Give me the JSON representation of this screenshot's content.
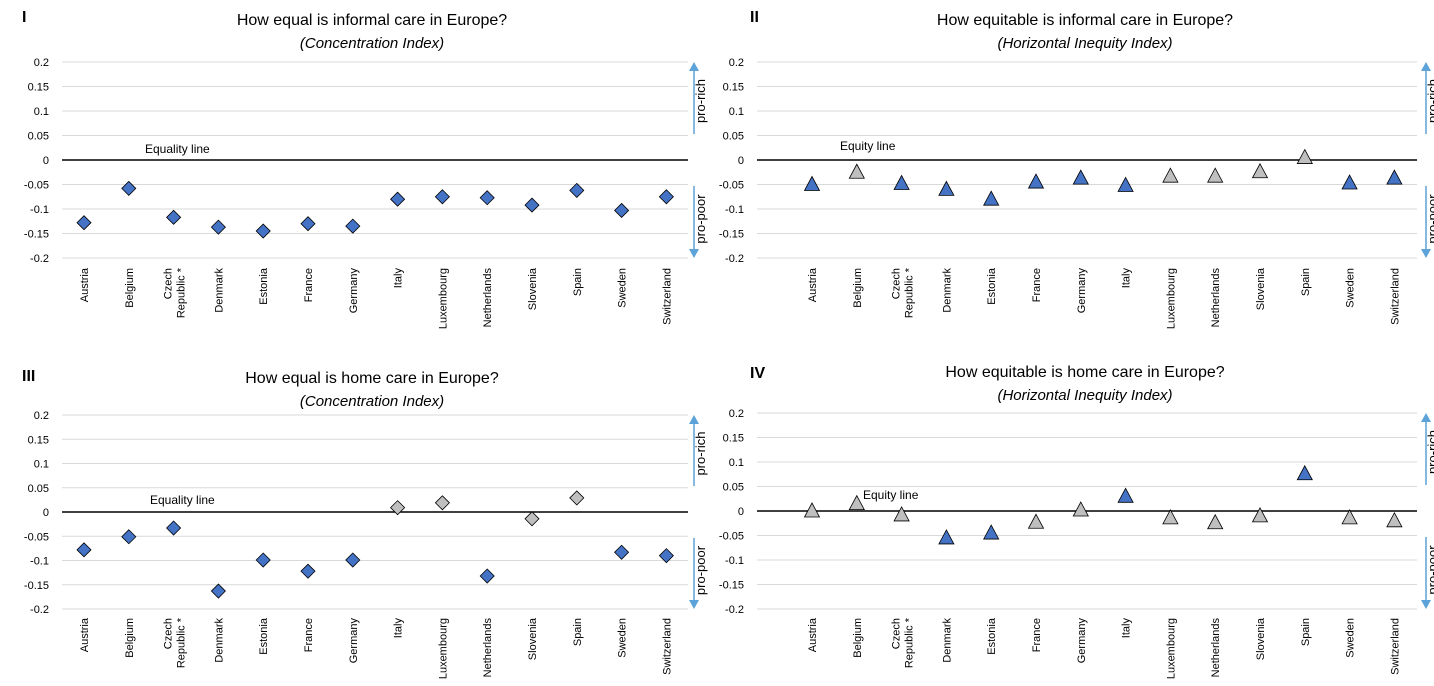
{
  "colors": {
    "significant": "#4472C4",
    "not_significant": "#BFBFBF",
    "arrow": "#5BA3D9",
    "grid": "#D9D9D9"
  },
  "chart_data": [
    {
      "panel": "I",
      "type": "scatter",
      "marker": "diamond",
      "title": "How equal is informal care in Europe?",
      "subtitle": "(Concentration Index)",
      "reference_label": "Equality line",
      "upper_label": "pro-rich",
      "lower_label": "pro-poor",
      "ylim": [
        -0.2,
        0.2
      ],
      "yticks": [
        "0.2",
        "0.15",
        "0.1",
        "0.05",
        "0",
        "-0.05",
        "-0.1",
        "-0.15",
        "-0.2"
      ],
      "categories": [
        "Austria",
        "Belgium",
        "Czech Republic *",
        "Denmark",
        "Estonia",
        "France",
        "Germany",
        "Italy",
        "Luxembourg",
        "Netherlands",
        "Slovenia",
        "Spain",
        "Sweden",
        "Switzerland"
      ],
      "values": [
        -0.128,
        -0.058,
        -0.117,
        -0.137,
        -0.145,
        -0.13,
        -0.135,
        -0.08,
        -0.075,
        -0.077,
        -0.092,
        -0.062,
        -0.103,
        -0.075
      ],
      "significant": [
        true,
        true,
        true,
        true,
        true,
        true,
        true,
        true,
        true,
        true,
        true,
        true,
        true,
        true
      ]
    },
    {
      "panel": "II",
      "type": "scatter",
      "marker": "triangle",
      "title": "How equitable is informal care in Europe?",
      "subtitle": "(Horizontal Inequity Index)",
      "reference_label": "Equity line",
      "upper_label": "pro-rich",
      "lower_label": "pro-poor",
      "ylim": [
        -0.2,
        0.2
      ],
      "yticks": [
        "0.2",
        "0.15",
        "0.1",
        "0.05",
        "0",
        "-0.05",
        "-0.1",
        "-0.15",
        "-0.2"
      ],
      "categories": [
        "Austria",
        "Belgium",
        "Czech Republic *",
        "Denmark",
        "Estonia",
        "France",
        "Germany",
        "Italy",
        "Luxembourg",
        "Netherlands",
        "Slovenia",
        "Spain",
        "Sweden",
        "Switzerland"
      ],
      "values": [
        -0.05,
        -0.025,
        -0.048,
        -0.06,
        -0.08,
        -0.045,
        -0.037,
        -0.052,
        -0.033,
        -0.033,
        -0.024,
        0.005,
        -0.047,
        -0.037
      ],
      "significant": [
        true,
        false,
        true,
        true,
        true,
        true,
        true,
        true,
        false,
        false,
        false,
        false,
        true,
        true
      ]
    },
    {
      "panel": "III",
      "type": "scatter",
      "marker": "diamond",
      "title": "How equal is home care in Europe?",
      "subtitle": "(Concentration Index)",
      "reference_label": "Equality line",
      "upper_label": "pro-rich",
      "lower_label": "pro-poor",
      "ylim": [
        -0.2,
        0.2
      ],
      "yticks": [
        "0.2",
        "0.15",
        "0.1",
        "0.05",
        "0",
        "-0.05",
        "-0.1",
        "-0.15",
        "-0.2"
      ],
      "categories": [
        "Austria",
        "Belgium",
        "Czech Republic *",
        "Denmark",
        "Estonia",
        "France",
        "Germany",
        "Italy",
        "Luxembourg",
        "Netherlands",
        "Slovenia",
        "Spain",
        "Sweden",
        "Switzerland"
      ],
      "values": [
        -0.078,
        -0.051,
        -0.033,
        -0.163,
        -0.099,
        -0.122,
        -0.099,
        0.009,
        0.019,
        -0.132,
        -0.014,
        0.029,
        -0.083,
        -0.09
      ],
      "significant": [
        true,
        true,
        true,
        true,
        true,
        true,
        true,
        false,
        false,
        true,
        false,
        false,
        true,
        true
      ]
    },
    {
      "panel": "IV",
      "type": "scatter",
      "marker": "triangle",
      "title": "How equitable is home care in Europe?",
      "subtitle": "(Horizontal Inequity Index)",
      "reference_label": "Equity line",
      "upper_label": "pro-rich",
      "lower_label": "pro-poor",
      "ylim": [
        -0.2,
        0.2
      ],
      "yticks": [
        "0.2",
        "0.15",
        "0.1",
        "0.05",
        "0",
        "-0.05",
        "-0.1",
        "-0.15",
        "-0.2"
      ],
      "categories": [
        "Austria",
        "Belgium",
        "Czech Republic *",
        "Denmark",
        "Estonia",
        "France",
        "Germany",
        "Italy",
        "Luxembourg",
        "Netherlands",
        "Slovenia",
        "Spain",
        "Sweden",
        "Switzerland"
      ],
      "values": [
        0.0,
        0.015,
        -0.008,
        -0.055,
        -0.045,
        -0.023,
        0.002,
        0.03,
        -0.014,
        -0.024,
        -0.01,
        0.076,
        -0.014,
        -0.02
      ],
      "significant": [
        false,
        false,
        false,
        true,
        true,
        false,
        false,
        true,
        false,
        false,
        false,
        true,
        false,
        false
      ]
    }
  ]
}
